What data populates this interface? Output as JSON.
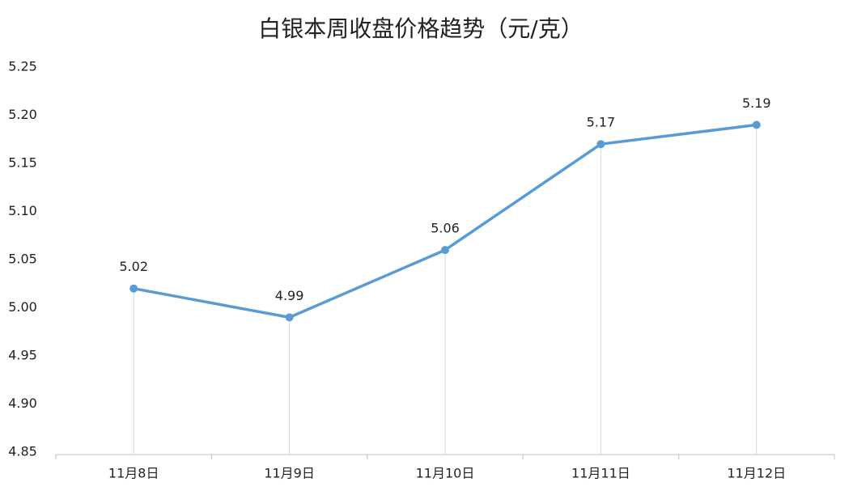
{
  "chart_data": {
    "type": "line",
    "title": "白银本周收盘价格趋势（元/克）",
    "categories": [
      "11月8日",
      "11月9日",
      "11月10日",
      "11月11日",
      "11月12日"
    ],
    "values": [
      5.02,
      4.99,
      5.06,
      5.17,
      5.19
    ],
    "color": "#5b9bd5",
    "ylim": [
      4.85,
      5.25
    ],
    "yticks": [
      4.85,
      {
        "value": 4.9,
        "label": "4.90"
      },
      4.95,
      {
        "value": 5.0,
        "label": "5.00"
      },
      5.05,
      {
        "value": 5.1,
        "label": "5.10"
      },
      5.15,
      {
        "value": 5.2,
        "label": "5.20"
      },
      5.25
    ],
    "grid": false,
    "drop_lines": true
  }
}
